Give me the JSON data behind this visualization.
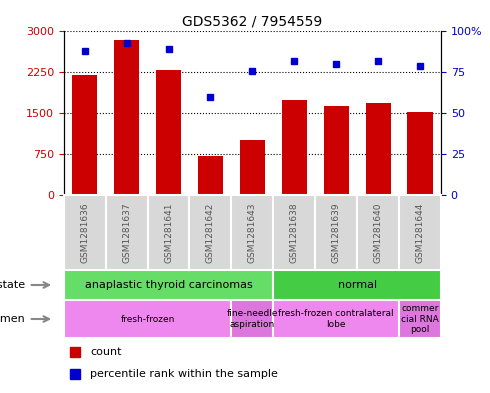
{
  "title": "GDS5362 / 7954559",
  "samples": [
    "GSM1281636",
    "GSM1281637",
    "GSM1281641",
    "GSM1281642",
    "GSM1281643",
    "GSM1281638",
    "GSM1281639",
    "GSM1281640",
    "GSM1281644"
  ],
  "counts": [
    2200,
    2850,
    2300,
    720,
    1000,
    1750,
    1630,
    1680,
    1530
  ],
  "percentiles": [
    88,
    93,
    89,
    60,
    76,
    82,
    80,
    82,
    79
  ],
  "bar_color": "#cc0000",
  "dot_color": "#0000cc",
  "left_ylim": [
    0,
    3000
  ],
  "right_ylim": [
    0,
    100
  ],
  "left_yticks": [
    0,
    750,
    1500,
    2250,
    3000
  ],
  "right_yticks": [
    0,
    25,
    50,
    75,
    100
  ],
  "right_yticklabels": [
    "0",
    "25",
    "50",
    "75",
    "100%"
  ],
  "disease_state_groups": [
    {
      "label": "anaplastic thyroid carcinomas",
      "color": "#66dd66",
      "start": 0,
      "end": 5
    },
    {
      "label": "normal",
      "color": "#44cc44",
      "start": 5,
      "end": 9
    }
  ],
  "specimen_groups": [
    {
      "label": "fresh-frozen",
      "color": "#ee88ee",
      "start": 0,
      "end": 4
    },
    {
      "label": "fine-needle\naspiration",
      "color": "#dd77dd",
      "start": 4,
      "end": 5
    },
    {
      "label": "fresh-frozen contralateral\nlobe",
      "color": "#ee88ee",
      "start": 5,
      "end": 8
    },
    {
      "label": "commer\ncial RNA\npool",
      "color": "#dd77dd",
      "start": 8,
      "end": 9
    }
  ],
  "legend_items": [
    {
      "label": "count",
      "color": "#cc0000"
    },
    {
      "label": "percentile rank within the sample",
      "color": "#0000cc"
    }
  ],
  "gray_box_color": "#d8d8d8",
  "tick_label_color": "#555555"
}
